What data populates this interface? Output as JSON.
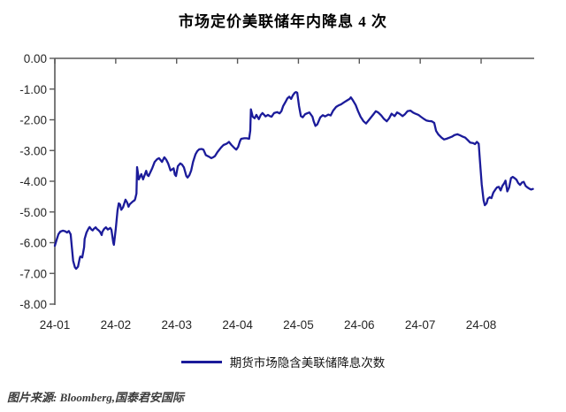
{
  "title": "市场定价美联储年内降息 4 次",
  "legend": {
    "label": "期货市场隐含美联储降息次数"
  },
  "source": "图片来源: Bloomberg,国泰君安国际",
  "chart_data": {
    "type": "line",
    "title": "市场定价美联储年内降息 4 次",
    "xlabel": "",
    "ylabel": "",
    "ylim": [
      -8,
      0
    ],
    "grid": false,
    "legend_position": "bottom-center",
    "axis_color": "#595959",
    "y_tick_labels": [
      "0.00",
      "-1.00",
      "-2.00",
      "-3.00",
      "-4.00",
      "-5.00",
      "-6.00",
      "-7.00",
      "-8.00"
    ],
    "x_tick_labels": [
      "24-01",
      "24-02",
      "24-03",
      "24-04",
      "24-05",
      "24-06",
      "24-07",
      "24-08"
    ],
    "x_unit_note": "x = months since 24-01 tick (0 = 24-01, 7 = 24-08)",
    "series": [
      {
        "name": "期货市场隐含美联储降息次数",
        "color": "#1b1b9a",
        "points": [
          [
            0.0,
            -6.1
          ],
          [
            0.03,
            -5.9
          ],
          [
            0.06,
            -5.72
          ],
          [
            0.09,
            -5.64
          ],
          [
            0.13,
            -5.61
          ],
          [
            0.17,
            -5.63
          ],
          [
            0.2,
            -5.67
          ],
          [
            0.23,
            -5.62
          ],
          [
            0.26,
            -5.73
          ],
          [
            0.28,
            -6.16
          ],
          [
            0.3,
            -6.59
          ],
          [
            0.33,
            -6.8
          ],
          [
            0.35,
            -6.85
          ],
          [
            0.38,
            -6.78
          ],
          [
            0.41,
            -6.5
          ],
          [
            0.42,
            -6.45
          ],
          [
            0.45,
            -6.48
          ],
          [
            0.48,
            -6.15
          ],
          [
            0.49,
            -5.88
          ],
          [
            0.52,
            -5.67
          ],
          [
            0.55,
            -5.55
          ],
          [
            0.57,
            -5.49
          ],
          [
            0.6,
            -5.57
          ],
          [
            0.62,
            -5.6
          ],
          [
            0.64,
            -5.55
          ],
          [
            0.67,
            -5.5
          ],
          [
            0.7,
            -5.57
          ],
          [
            0.71,
            -5.58
          ],
          [
            0.74,
            -5.64
          ],
          [
            0.77,
            -5.75
          ],
          [
            0.78,
            -5.65
          ],
          [
            0.81,
            -5.55
          ],
          [
            0.84,
            -5.5
          ],
          [
            0.87,
            -5.57
          ],
          [
            0.91,
            -5.52
          ],
          [
            0.93,
            -5.58
          ],
          [
            0.96,
            -6.0
          ],
          [
            0.97,
            -6.07
          ],
          [
            1.0,
            -5.55
          ],
          [
            1.03,
            -4.95
          ],
          [
            1.05,
            -4.72
          ],
          [
            1.07,
            -4.75
          ],
          [
            1.09,
            -4.93
          ],
          [
            1.12,
            -4.85
          ],
          [
            1.16,
            -4.6
          ],
          [
            1.19,
            -4.7
          ],
          [
            1.21,
            -4.83
          ],
          [
            1.23,
            -4.75
          ],
          [
            1.28,
            -4.66
          ],
          [
            1.31,
            -4.62
          ],
          [
            1.32,
            -4.57
          ],
          [
            1.34,
            -4.4
          ],
          [
            1.35,
            -3.54
          ],
          [
            1.38,
            -3.94
          ],
          [
            1.42,
            -3.77
          ],
          [
            1.45,
            -3.94
          ],
          [
            1.5,
            -3.66
          ],
          [
            1.52,
            -3.8
          ],
          [
            1.54,
            -3.83
          ],
          [
            1.57,
            -3.7
          ],
          [
            1.6,
            -3.57
          ],
          [
            1.64,
            -3.37
          ],
          [
            1.68,
            -3.28
          ],
          [
            1.71,
            -3.25
          ],
          [
            1.76,
            -3.37
          ],
          [
            1.79,
            -3.25
          ],
          [
            1.8,
            -3.22
          ],
          [
            1.83,
            -3.3
          ],
          [
            1.86,
            -3.42
          ],
          [
            1.9,
            -3.65
          ],
          [
            1.95,
            -3.58
          ],
          [
            1.97,
            -3.78
          ],
          [
            1.99,
            -3.83
          ],
          [
            2.02,
            -3.51
          ],
          [
            2.06,
            -3.42
          ],
          [
            2.09,
            -3.46
          ],
          [
            2.12,
            -3.55
          ],
          [
            2.16,
            -3.83
          ],
          [
            2.18,
            -3.88
          ],
          [
            2.21,
            -3.8
          ],
          [
            2.24,
            -3.65
          ],
          [
            2.27,
            -3.37
          ],
          [
            2.31,
            -3.12
          ],
          [
            2.34,
            -3.02
          ],
          [
            2.37,
            -2.96
          ],
          [
            2.41,
            -2.95
          ],
          [
            2.44,
            -2.97
          ],
          [
            2.48,
            -3.15
          ],
          [
            2.53,
            -3.2
          ],
          [
            2.57,
            -3.25
          ],
          [
            2.6,
            -3.22
          ],
          [
            2.63,
            -3.18
          ],
          [
            2.67,
            -3.05
          ],
          [
            2.73,
            -2.9
          ],
          [
            2.77,
            -2.82
          ],
          [
            2.82,
            -2.78
          ],
          [
            2.86,
            -2.72
          ],
          [
            2.9,
            -2.82
          ],
          [
            2.95,
            -2.92
          ],
          [
            2.98,
            -2.97
          ],
          [
            3.01,
            -2.88
          ],
          [
            3.04,
            -2.7
          ],
          [
            3.06,
            -2.62
          ],
          [
            3.11,
            -2.6
          ],
          [
            3.15,
            -2.6
          ],
          [
            3.19,
            -2.62
          ],
          [
            3.21,
            -2.35
          ],
          [
            3.22,
            -1.66
          ],
          [
            3.25,
            -1.9
          ],
          [
            3.28,
            -1.95
          ],
          [
            3.31,
            -1.84
          ],
          [
            3.35,
            -1.98
          ],
          [
            3.38,
            -1.85
          ],
          [
            3.41,
            -1.78
          ],
          [
            3.46,
            -1.89
          ],
          [
            3.5,
            -1.84
          ],
          [
            3.53,
            -1.88
          ],
          [
            3.56,
            -1.9
          ],
          [
            3.6,
            -1.78
          ],
          [
            3.65,
            -1.75
          ],
          [
            3.69,
            -1.79
          ],
          [
            3.72,
            -1.72
          ],
          [
            3.75,
            -1.55
          ],
          [
            3.79,
            -1.41
          ],
          [
            3.82,
            -1.3
          ],
          [
            3.85,
            -1.25
          ],
          [
            3.88,
            -1.32
          ],
          [
            3.91,
            -1.2
          ],
          [
            3.94,
            -1.12
          ],
          [
            3.96,
            -1.1
          ],
          [
            3.98,
            -1.12
          ],
          [
            4.01,
            -1.55
          ],
          [
            4.04,
            -1.88
          ],
          [
            4.07,
            -1.92
          ],
          [
            4.11,
            -1.82
          ],
          [
            4.15,
            -1.78
          ],
          [
            4.18,
            -1.76
          ],
          [
            4.23,
            -1.9
          ],
          [
            4.25,
            -2.05
          ],
          [
            4.28,
            -2.2
          ],
          [
            4.31,
            -2.15
          ],
          [
            4.36,
            -1.92
          ],
          [
            4.4,
            -1.85
          ],
          [
            4.44,
            -1.89
          ],
          [
            4.49,
            -1.83
          ],
          [
            4.53,
            -1.86
          ],
          [
            4.57,
            -1.7
          ],
          [
            4.62,
            -1.58
          ],
          [
            4.66,
            -1.53
          ],
          [
            4.7,
            -1.5
          ],
          [
            4.75,
            -1.43
          ],
          [
            4.79,
            -1.38
          ],
          [
            4.84,
            -1.32
          ],
          [
            4.86,
            -1.27
          ],
          [
            4.89,
            -1.35
          ],
          [
            4.94,
            -1.52
          ],
          [
            4.98,
            -1.72
          ],
          [
            5.02,
            -1.9
          ],
          [
            5.07,
            -2.05
          ],
          [
            5.11,
            -2.12
          ],
          [
            5.16,
            -2.0
          ],
          [
            5.2,
            -1.9
          ],
          [
            5.24,
            -1.8
          ],
          [
            5.27,
            -1.72
          ],
          [
            5.31,
            -1.76
          ],
          [
            5.36,
            -1.86
          ],
          [
            5.4,
            -1.96
          ],
          [
            5.45,
            -2.05
          ],
          [
            5.49,
            -1.95
          ],
          [
            5.53,
            -1.8
          ],
          [
            5.58,
            -1.88
          ],
          [
            5.62,
            -1.76
          ],
          [
            5.66,
            -1.8
          ],
          [
            5.71,
            -1.88
          ],
          [
            5.75,
            -1.82
          ],
          [
            5.79,
            -1.72
          ],
          [
            5.84,
            -1.7
          ],
          [
            5.88,
            -1.76
          ],
          [
            5.92,
            -1.8
          ],
          [
            5.97,
            -1.84
          ],
          [
            6.01,
            -1.9
          ],
          [
            6.06,
            -1.97
          ],
          [
            6.1,
            -2.02
          ],
          [
            6.14,
            -2.04
          ],
          [
            6.19,
            -2.05
          ],
          [
            6.23,
            -2.1
          ],
          [
            6.26,
            -2.36
          ],
          [
            6.3,
            -2.48
          ],
          [
            6.35,
            -2.58
          ],
          [
            6.39,
            -2.64
          ],
          [
            6.43,
            -2.62
          ],
          [
            6.48,
            -2.58
          ],
          [
            6.52,
            -2.55
          ],
          [
            6.56,
            -2.5
          ],
          [
            6.61,
            -2.47
          ],
          [
            6.65,
            -2.5
          ],
          [
            6.69,
            -2.54
          ],
          [
            6.74,
            -2.58
          ],
          [
            6.78,
            -2.66
          ],
          [
            6.82,
            -2.74
          ],
          [
            6.87,
            -2.76
          ],
          [
            6.9,
            -2.79
          ],
          [
            6.93,
            -2.72
          ],
          [
            6.96,
            -2.78
          ],
          [
            6.98,
            -3.3
          ],
          [
            7.01,
            -4.1
          ],
          [
            7.04,
            -4.62
          ],
          [
            7.06,
            -4.78
          ],
          [
            7.09,
            -4.72
          ],
          [
            7.11,
            -4.57
          ],
          [
            7.14,
            -4.52
          ],
          [
            7.17,
            -4.55
          ],
          [
            7.2,
            -4.37
          ],
          [
            7.23,
            -4.28
          ],
          [
            7.26,
            -4.2
          ],
          [
            7.29,
            -4.18
          ],
          [
            7.32,
            -4.3
          ],
          [
            7.35,
            -4.15
          ],
          [
            7.38,
            -4.06
          ],
          [
            7.4,
            -3.98
          ],
          [
            7.43,
            -4.33
          ],
          [
            7.46,
            -4.2
          ],
          [
            7.49,
            -3.9
          ],
          [
            7.52,
            -3.86
          ],
          [
            7.55,
            -3.9
          ],
          [
            7.58,
            -3.95
          ],
          [
            7.61,
            -4.06
          ],
          [
            7.64,
            -4.12
          ],
          [
            7.67,
            -4.04
          ],
          [
            7.7,
            -4.02
          ],
          [
            7.73,
            -4.15
          ],
          [
            7.76,
            -4.2
          ],
          [
            7.79,
            -4.24
          ],
          [
            7.82,
            -4.27
          ],
          [
            7.85,
            -4.25
          ]
        ]
      }
    ]
  }
}
